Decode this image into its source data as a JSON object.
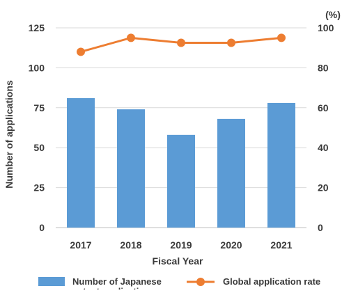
{
  "chart_data": {
    "type": "bar",
    "categories": [
      "2017",
      "2018",
      "2019",
      "2020",
      "2021"
    ],
    "series": [
      {
        "name": "Number of Japanese patent applications",
        "kind": "bar",
        "axis": "left",
        "color": "#5b9bd5",
        "values": [
          81,
          74,
          58,
          68,
          78
        ]
      },
      {
        "name": "Global application rate",
        "kind": "line",
        "axis": "right",
        "color": "#ed7d31",
        "values": [
          88,
          95,
          92.5,
          92.5,
          95
        ]
      }
    ],
    "xlabel": "Fiscal Year",
    "ylabel": "Number of applications",
    "y2label": "(%)",
    "ylim": [
      0,
      125
    ],
    "y2lim": [
      0,
      100
    ],
    "yticks": [
      "0",
      "25",
      "50",
      "75",
      "100",
      "125"
    ],
    "y2ticks": [
      "0",
      "20",
      "40",
      "60",
      "80",
      "100"
    ],
    "grid": true,
    "legend_position": "bottom",
    "legend": {
      "bar_label_line1": "Number of Japanese",
      "bar_label_line2": "patent applications",
      "line_label": "Global application rate"
    }
  }
}
